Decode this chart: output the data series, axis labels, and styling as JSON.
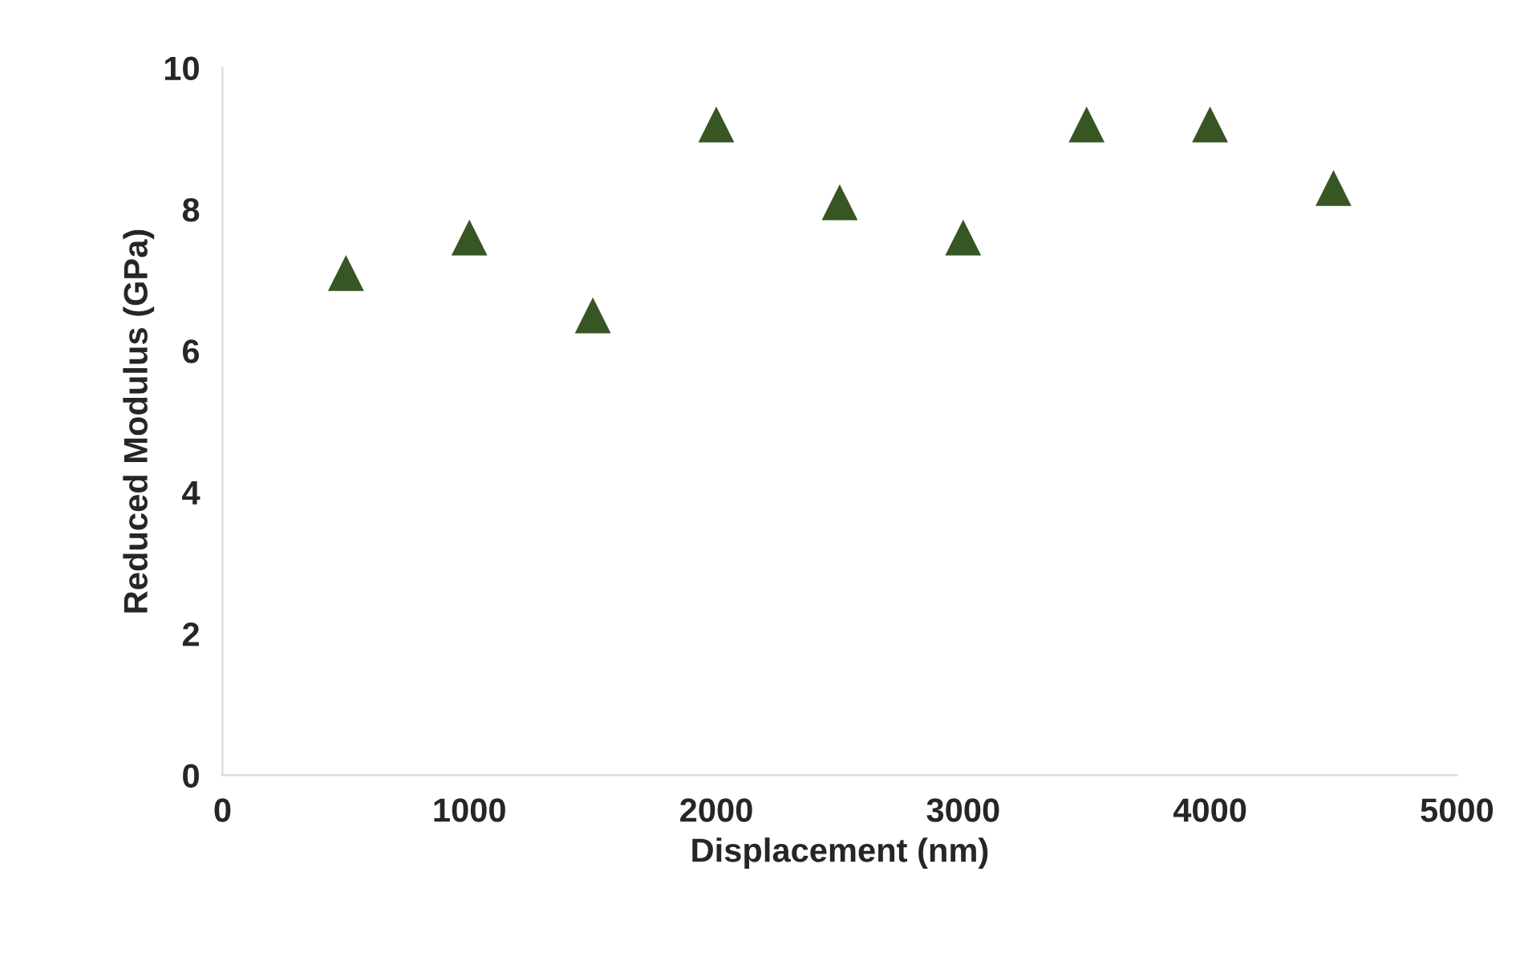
{
  "chart_data": {
    "type": "scatter",
    "xlabel": "Displacement (nm)",
    "ylabel": "Reduced Modulus (GPa)",
    "x": [
      500,
      1000,
      1500,
      2000,
      2500,
      3000,
      3500,
      4000,
      4500
    ],
    "series": [
      {
        "color": "#375623",
        "values": [
          7.1,
          7.6,
          6.5,
          9.2,
          8.1,
          7.6,
          9.2,
          9.2,
          8.3
        ]
      }
    ],
    "xlim": [
      0,
      5000
    ],
    "xticks": [
      0,
      1000,
      2000,
      3000,
      4000,
      5000
    ],
    "ylim": [
      0,
      10
    ],
    "yticks": [
      0,
      2,
      4,
      6,
      8,
      10
    ],
    "grid": false,
    "legend": false,
    "marker": "triangle"
  }
}
